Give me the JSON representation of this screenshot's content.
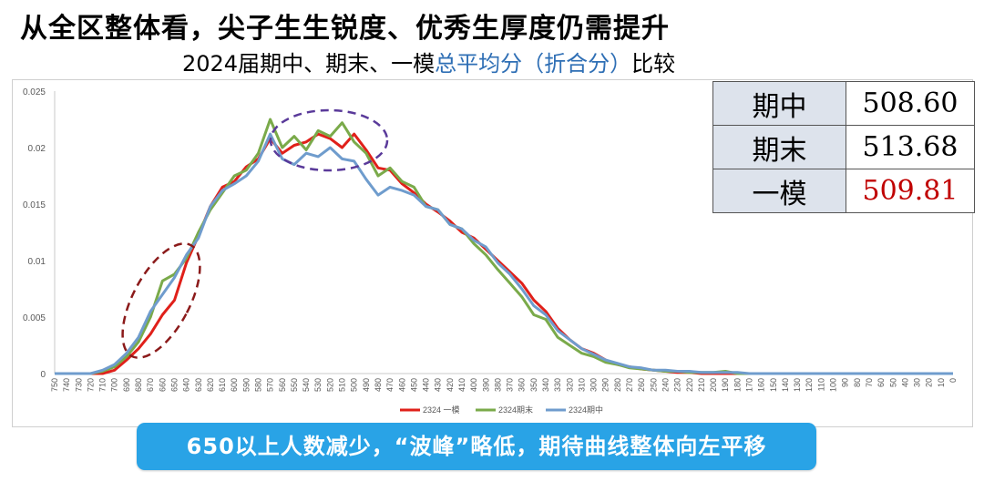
{
  "slide": {
    "title": "从全区整体看，尖子生生锐度、优秀生厚度仍需提升",
    "subtitle_pre": "2024届期中、期末、一模",
    "subtitle_highlight": "总平均分（折合分）",
    "subtitle_post": "比较",
    "callout": "650以上人数减少，“波峰”略低，期待曲线整体向左平移"
  },
  "mean_table": [
    {
      "label": "期中",
      "value": "508.60",
      "color": "#000000"
    },
    {
      "label": "期末",
      "value": "513.68",
      "color": "#000000"
    },
    {
      "label": "一模",
      "value": "509.81",
      "color": "#c00000"
    }
  ],
  "chart_data": {
    "type": "line",
    "x_reversed": true,
    "x_ticks": [
      750,
      740,
      730,
      720,
      710,
      700,
      690,
      680,
      670,
      660,
      650,
      640,
      630,
      620,
      610,
      600,
      590,
      580,
      570,
      560,
      550,
      540,
      530,
      520,
      510,
      500,
      490,
      480,
      470,
      460,
      450,
      440,
      430,
      420,
      410,
      400,
      390,
      380,
      370,
      360,
      350,
      340,
      330,
      320,
      310,
      300,
      290,
      280,
      270,
      260,
      250,
      240,
      230,
      220,
      210,
      200,
      190,
      180,
      170,
      160,
      150,
      140,
      130,
      120,
      110,
      100,
      90,
      80,
      70,
      60,
      50,
      40,
      30,
      20,
      10,
      0
    ],
    "y_ticks": [
      "0",
      "0.005",
      "0.01",
      "0.015",
      "0.02",
      "0.025"
    ],
    "ylim": [
      0,
      0.025
    ],
    "grid": false,
    "legend_position": "bottom",
    "series": [
      {
        "name": "2324 一模",
        "color": "#e0201a",
        "points": [
          [
            750,
            0
          ],
          [
            720,
            0
          ],
          [
            710,
            0
          ],
          [
            700,
            0.0003
          ],
          [
            690,
            0.0012
          ],
          [
            680,
            0.0022
          ],
          [
            670,
            0.0035
          ],
          [
            660,
            0.0052
          ],
          [
            650,
            0.0065
          ],
          [
            640,
            0.0098
          ],
          [
            630,
            0.0122
          ],
          [
            620,
            0.0148
          ],
          [
            610,
            0.0165
          ],
          [
            600,
            0.017
          ],
          [
            590,
            0.0183
          ],
          [
            580,
            0.019
          ],
          [
            570,
            0.0208
          ],
          [
            560,
            0.0195
          ],
          [
            550,
            0.0202
          ],
          [
            540,
            0.0205
          ],
          [
            530,
            0.0212
          ],
          [
            520,
            0.0208
          ],
          [
            510,
            0.02
          ],
          [
            500,
            0.0212
          ],
          [
            490,
            0.0198
          ],
          [
            480,
            0.0182
          ],
          [
            470,
            0.018
          ],
          [
            460,
            0.0168
          ],
          [
            450,
            0.016
          ],
          [
            440,
            0.015
          ],
          [
            430,
            0.0143
          ],
          [
            420,
            0.0135
          ],
          [
            410,
            0.0125
          ],
          [
            400,
            0.012
          ],
          [
            390,
            0.011
          ],
          [
            380,
            0.01
          ],
          [
            370,
            0.009
          ],
          [
            360,
            0.008
          ],
          [
            350,
            0.0065
          ],
          [
            340,
            0.0055
          ],
          [
            330,
            0.004
          ],
          [
            320,
            0.003
          ],
          [
            310,
            0.0022
          ],
          [
            300,
            0.0018
          ],
          [
            290,
            0.0012
          ],
          [
            280,
            0.0008
          ],
          [
            270,
            0.0006
          ],
          [
            260,
            0.0004
          ],
          [
            250,
            0.0003
          ],
          [
            240,
            0.0002
          ],
          [
            230,
            0.0001
          ],
          [
            220,
            0.0001
          ],
          [
            210,
            0
          ],
          [
            200,
            0
          ],
          [
            0,
            0
          ]
        ]
      },
      {
        "name": "2324期末",
        "color": "#7aaa4a",
        "points": [
          [
            750,
            0
          ],
          [
            720,
            0
          ],
          [
            710,
            0.0002
          ],
          [
            700,
            0.0006
          ],
          [
            690,
            0.0015
          ],
          [
            680,
            0.0028
          ],
          [
            670,
            0.005
          ],
          [
            660,
            0.0082
          ],
          [
            650,
            0.0088
          ],
          [
            640,
            0.0102
          ],
          [
            630,
            0.0125
          ],
          [
            620,
            0.0145
          ],
          [
            610,
            0.016
          ],
          [
            600,
            0.0175
          ],
          [
            590,
            0.018
          ],
          [
            580,
            0.0195
          ],
          [
            570,
            0.0225
          ],
          [
            560,
            0.02
          ],
          [
            550,
            0.021
          ],
          [
            540,
            0.0198
          ],
          [
            530,
            0.0215
          ],
          [
            520,
            0.021
          ],
          [
            510,
            0.0222
          ],
          [
            500,
            0.0205
          ],
          [
            490,
            0.0195
          ],
          [
            480,
            0.0175
          ],
          [
            470,
            0.0182
          ],
          [
            460,
            0.017
          ],
          [
            450,
            0.0165
          ],
          [
            440,
            0.0148
          ],
          [
            430,
            0.0145
          ],
          [
            420,
            0.0132
          ],
          [
            410,
            0.0128
          ],
          [
            400,
            0.0115
          ],
          [
            390,
            0.0105
          ],
          [
            380,
            0.0092
          ],
          [
            370,
            0.008
          ],
          [
            360,
            0.0068
          ],
          [
            350,
            0.0052
          ],
          [
            340,
            0.0048
          ],
          [
            330,
            0.0032
          ],
          [
            320,
            0.0025
          ],
          [
            310,
            0.0018
          ],
          [
            300,
            0.0015
          ],
          [
            290,
            0.001
          ],
          [
            280,
            0.0008
          ],
          [
            270,
            0.0005
          ],
          [
            260,
            0.0004
          ],
          [
            250,
            0.0003
          ],
          [
            240,
            0.0002
          ],
          [
            230,
            0.0002
          ],
          [
            220,
            0.0001
          ],
          [
            210,
            0.0001
          ],
          [
            200,
            0.0001
          ],
          [
            190,
            0.0002
          ],
          [
            180,
            0
          ],
          [
            0,
            0
          ]
        ]
      },
      {
        "name": "2324期中",
        "color": "#6f9ccd",
        "points": [
          [
            750,
            0
          ],
          [
            720,
            0
          ],
          [
            710,
            0.0003
          ],
          [
            700,
            0.0008
          ],
          [
            690,
            0.0018
          ],
          [
            680,
            0.0032
          ],
          [
            670,
            0.0055
          ],
          [
            660,
            0.007
          ],
          [
            650,
            0.0085
          ],
          [
            640,
            0.0105
          ],
          [
            630,
            0.012
          ],
          [
            620,
            0.0148
          ],
          [
            610,
            0.0162
          ],
          [
            600,
            0.0168
          ],
          [
            590,
            0.0175
          ],
          [
            580,
            0.0188
          ],
          [
            570,
            0.0212
          ],
          [
            560,
            0.019
          ],
          [
            550,
            0.0185
          ],
          [
            540,
            0.0195
          ],
          [
            530,
            0.0192
          ],
          [
            520,
            0.02
          ],
          [
            510,
            0.019
          ],
          [
            500,
            0.0188
          ],
          [
            490,
            0.0172
          ],
          [
            480,
            0.0158
          ],
          [
            470,
            0.0165
          ],
          [
            460,
            0.0162
          ],
          [
            450,
            0.0158
          ],
          [
            440,
            0.0148
          ],
          [
            430,
            0.0145
          ],
          [
            420,
            0.0132
          ],
          [
            410,
            0.0128
          ],
          [
            400,
            0.0118
          ],
          [
            390,
            0.0112
          ],
          [
            380,
            0.0098
          ],
          [
            370,
            0.0088
          ],
          [
            360,
            0.0075
          ],
          [
            350,
            0.006
          ],
          [
            340,
            0.0052
          ],
          [
            330,
            0.0038
          ],
          [
            320,
            0.003
          ],
          [
            310,
            0.0022
          ],
          [
            300,
            0.0017
          ],
          [
            290,
            0.0012
          ],
          [
            280,
            0.0009
          ],
          [
            270,
            0.0006
          ],
          [
            260,
            0.0005
          ],
          [
            250,
            0.0003
          ],
          [
            240,
            0.0003
          ],
          [
            230,
            0.0002
          ],
          [
            220,
            0.0002
          ],
          [
            210,
            0.0001
          ],
          [
            200,
            0.0001
          ],
          [
            190,
            0.0001
          ],
          [
            180,
            0.0001
          ],
          [
            170,
            0
          ],
          [
            0,
            0
          ]
        ]
      }
    ]
  }
}
